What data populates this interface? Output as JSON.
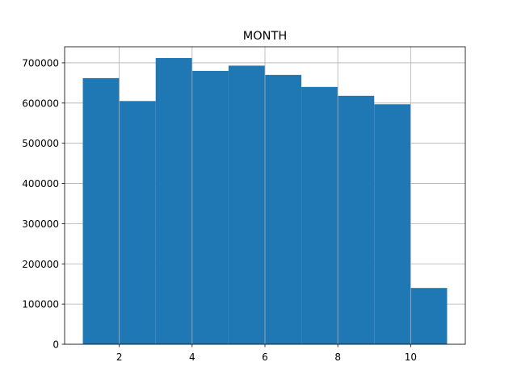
{
  "chart_data": {
    "type": "bar",
    "subtype": "histogram",
    "title": "MONTH",
    "xlabel": "",
    "ylabel": "",
    "bin_edges": [
      1,
      2,
      3,
      4,
      5,
      6,
      7,
      8,
      9,
      10,
      11
    ],
    "values": [
      662000,
      605000,
      712000,
      680000,
      693000,
      670000,
      640000,
      618000,
      597000,
      140000
    ],
    "xlim": [
      0.5,
      11.5
    ],
    "ylim": [
      0,
      740000
    ],
    "xticks": [
      2,
      4,
      6,
      8,
      10
    ],
    "yticks": [
      0,
      100000,
      200000,
      300000,
      400000,
      500000,
      600000,
      700000
    ],
    "grid": true,
    "legend": "none",
    "bar_color": "#1f77b4",
    "grid_color": "#b0b0b0",
    "axis_color": "#000000"
  }
}
